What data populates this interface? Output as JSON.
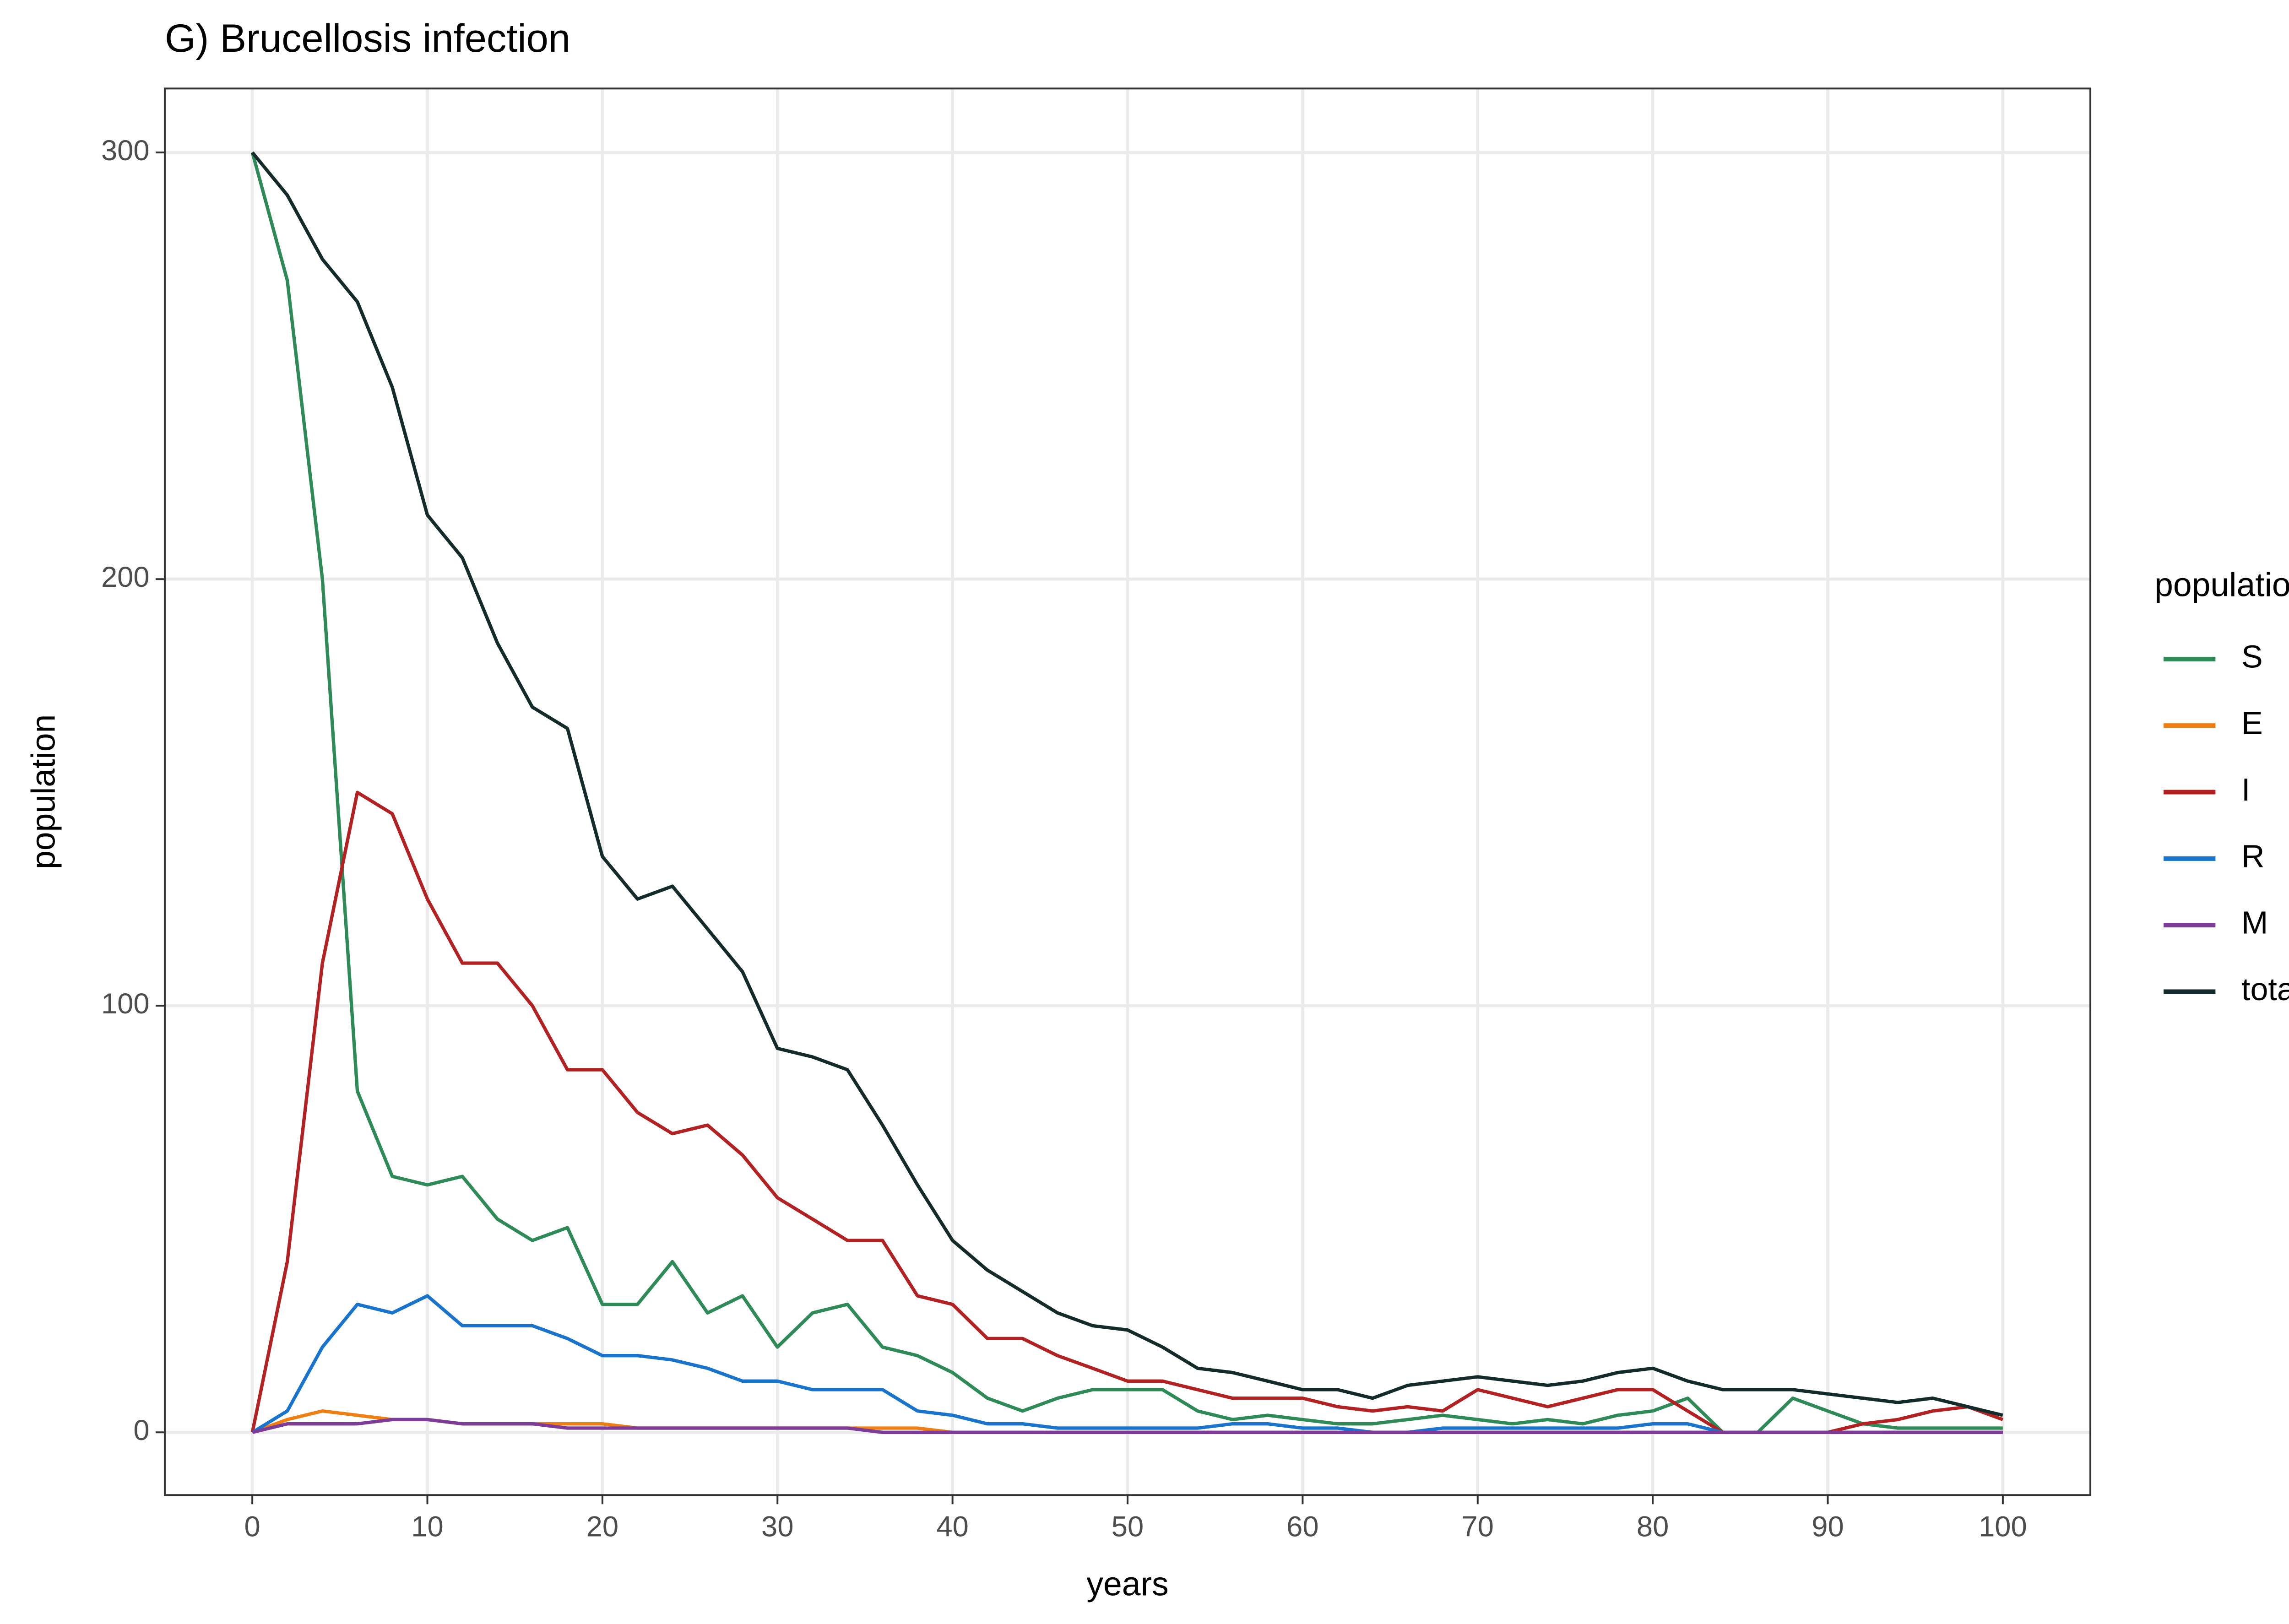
{
  "chart_data": {
    "type": "line",
    "title": "G) Brucellosis infection",
    "x_label": "years",
    "y_label": "population",
    "legend_title": "population",
    "legend_position": "right",
    "grid": true,
    "x": [
      0,
      2,
      4,
      6,
      8,
      10,
      12,
      14,
      16,
      18,
      20,
      22,
      24,
      26,
      28,
      30,
      32,
      34,
      36,
      38,
      40,
      42,
      44,
      46,
      48,
      50,
      52,
      54,
      56,
      58,
      60,
      62,
      64,
      66,
      68,
      70,
      72,
      74,
      76,
      78,
      80,
      82,
      84,
      86,
      88,
      90,
      92,
      94,
      96,
      98,
      100
    ],
    "xlim": [
      -5,
      105
    ],
    "xticks": [
      0,
      10,
      20,
      30,
      40,
      50,
      60,
      70,
      80,
      90,
      100
    ],
    "ylim": [
      -14.7,
      315
    ],
    "yticks": [
      0,
      100,
      200,
      300
    ],
    "series": [
      {
        "name": "S",
        "color": "#2e8b57",
        "values": [
          300,
          270,
          200,
          80,
          60,
          58,
          60,
          50,
          45,
          48,
          30,
          30,
          40,
          28,
          32,
          20,
          28,
          30,
          20,
          18,
          14,
          8,
          5,
          8,
          10,
          10,
          10,
          5,
          3,
          4,
          3,
          2,
          2,
          3,
          4,
          3,
          2,
          3,
          2,
          4,
          5,
          8,
          0,
          0,
          8,
          5,
          2,
          1,
          1,
          1,
          1
        ]
      },
      {
        "name": "E",
        "color": "#f07f12",
        "values": [
          0,
          3,
          5,
          4,
          3,
          3,
          2,
          2,
          2,
          2,
          2,
          1,
          1,
          1,
          1,
          1,
          1,
          1,
          1,
          1,
          0,
          0,
          0,
          0,
          0,
          0,
          0,
          0,
          0,
          0,
          0,
          0,
          0,
          0,
          0,
          0,
          0,
          0,
          0,
          0,
          0,
          0,
          0,
          0,
          0,
          0,
          0,
          0,
          0,
          0,
          0
        ]
      },
      {
        "name": "I",
        "color": "#b22222",
        "values": [
          0,
          40,
          110,
          150,
          145,
          125,
          110,
          110,
          100,
          85,
          85,
          75,
          70,
          72,
          65,
          55,
          50,
          45,
          45,
          32,
          30,
          22,
          22,
          18,
          15,
          12,
          12,
          10,
          8,
          8,
          8,
          6,
          5,
          6,
          5,
          10,
          8,
          6,
          8,
          10,
          10,
          5,
          0,
          0,
          0,
          0,
          2,
          3,
          5,
          6,
          3
        ]
      },
      {
        "name": "R",
        "color": "#1874cd",
        "values": [
          0,
          5,
          20,
          30,
          28,
          32,
          25,
          25,
          25,
          22,
          18,
          18,
          17,
          15,
          12,
          12,
          10,
          10,
          10,
          5,
          4,
          2,
          2,
          1,
          1,
          1,
          1,
          1,
          2,
          2,
          1,
          1,
          0,
          0,
          1,
          1,
          1,
          1,
          1,
          1,
          2,
          2,
          0,
          0,
          0,
          0,
          0,
          0,
          0,
          0,
          0
        ]
      },
      {
        "name": "M",
        "color": "#7d3c98",
        "values": [
          0,
          2,
          2,
          2,
          3,
          3,
          2,
          2,
          2,
          1,
          1,
          1,
          1,
          1,
          1,
          1,
          1,
          1,
          0,
          0,
          0,
          0,
          0,
          0,
          0,
          0,
          0,
          0,
          0,
          0,
          0,
          0,
          0,
          0,
          0,
          0,
          0,
          0,
          0,
          0,
          0,
          0,
          0,
          0,
          0,
          0,
          0,
          0,
          0,
          0,
          0
        ]
      },
      {
        "name": "total",
        "color": "#142b2b",
        "values": [
          300,
          290,
          275,
          265,
          245,
          215,
          205,
          185,
          170,
          165,
          135,
          125,
          128,
          118,
          108,
          90,
          88,
          85,
          72,
          58,
          45,
          38,
          33,
          28,
          25,
          24,
          20,
          15,
          14,
          12,
          10,
          10,
          8,
          11,
          12,
          13,
          12,
          11,
          12,
          14,
          15,
          12,
          10,
          10,
          10,
          9,
          8,
          7,
          8,
          6,
          4
        ]
      }
    ]
  }
}
